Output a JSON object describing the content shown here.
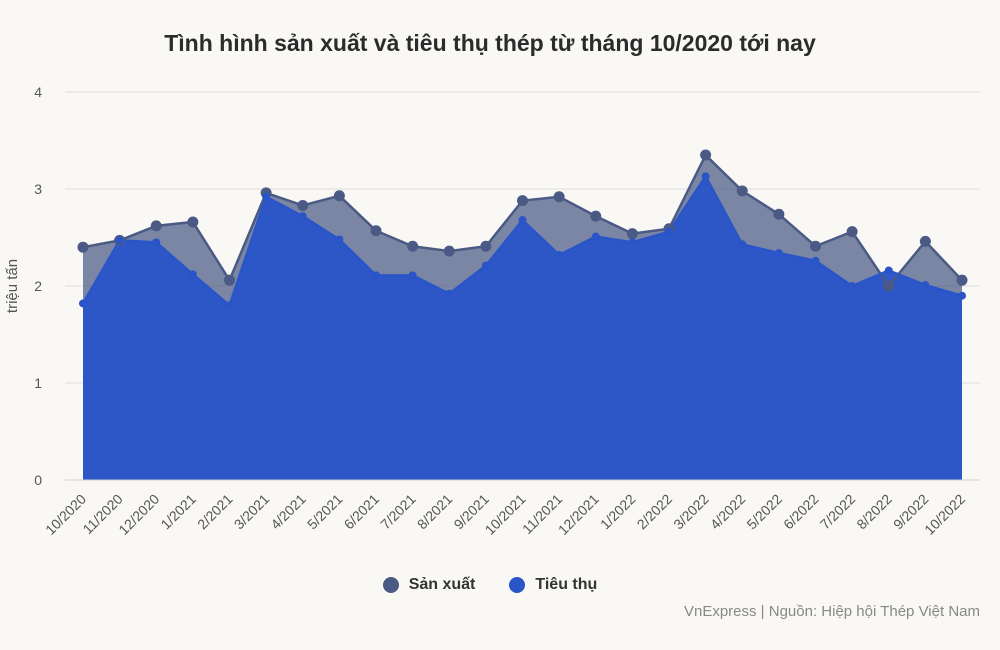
{
  "colors": {
    "production": "#4a5a85",
    "consumption": "#2a55c8",
    "grid": "#dedede",
    "axis_text": "#555555"
  },
  "chart_data": {
    "type": "area",
    "title": "Tình hình sản xuất và tiêu thụ thép từ tháng 10/2020 tới nay",
    "ylabel": "triệu tấn",
    "xlabel": "",
    "ylim": [
      0,
      4
    ],
    "yticks": [
      "0",
      "1",
      "2",
      "3",
      "4"
    ],
    "grid": true,
    "legend_position": "bottom",
    "categories": [
      "10/2020",
      "11/2020",
      "12/2020",
      "1/2021",
      "2/2021",
      "3/2021",
      "4/2021",
      "5/2021",
      "6/2021",
      "7/2021",
      "8/2021",
      "9/2021",
      "10/2021",
      "11/2021",
      "12/2021",
      "1/2022",
      "2/2022",
      "3/2022",
      "4/2022",
      "5/2022",
      "6/2022",
      "7/2022",
      "8/2022",
      "9/2022",
      "10/2022"
    ],
    "series": [
      {
        "name": "Sản xuất",
        "values": [
          2.4,
          2.47,
          2.62,
          2.66,
          2.06,
          2.96,
          2.83,
          2.93,
          2.57,
          2.41,
          2.36,
          2.41,
          2.88,
          2.92,
          2.72,
          2.54,
          2.59,
          3.35,
          2.98,
          2.74,
          2.41,
          2.56,
          2.0,
          2.46,
          2.06
        ]
      },
      {
        "name": "Tiêu thụ",
        "values": [
          1.82,
          2.47,
          2.45,
          2.12,
          1.8,
          2.92,
          2.72,
          2.48,
          2.11,
          2.11,
          1.92,
          2.21,
          2.68,
          2.32,
          2.51,
          2.45,
          2.56,
          3.13,
          2.43,
          2.34,
          2.26,
          2.0,
          2.16,
          2.01,
          1.9
        ]
      }
    ]
  },
  "legend": {
    "production_label": "Sản xuất",
    "consumption_label": "Tiêu thụ"
  },
  "source_text": "VnExpress | Nguồn: Hiệp hội Thép Việt Nam"
}
